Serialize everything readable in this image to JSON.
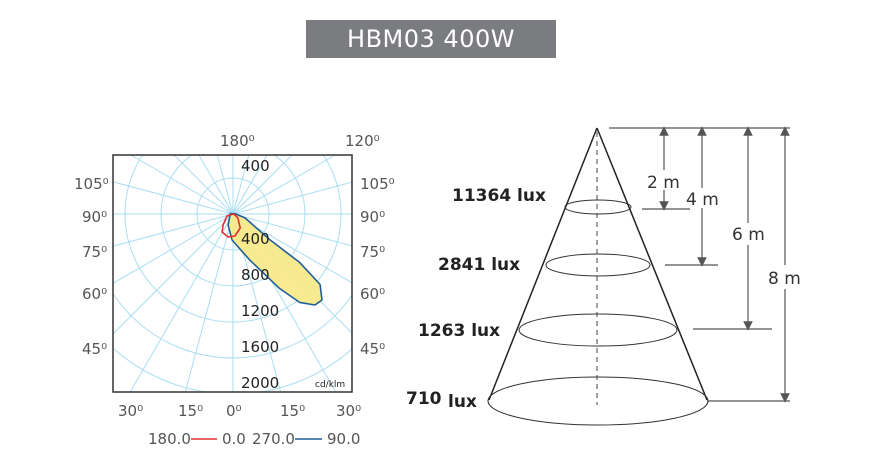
{
  "title": "HBM03 400W",
  "chart_data": {
    "type": "polar",
    "unit_label": "cd/klm",
    "radial_ticks": [
      "400",
      "400",
      "800",
      "1200",
      "1600",
      "2000"
    ],
    "radial_values": [
      400,
      800,
      1200,
      1600,
      2000
    ],
    "angle_labels": {
      "top": [
        "180⁰",
        "120⁰"
      ],
      "left": [
        "105⁰",
        "90⁰",
        "75⁰",
        "60⁰",
        "45⁰"
      ],
      "right": [
        "105⁰",
        "90⁰",
        "75⁰",
        "60⁰",
        "45⁰"
      ],
      "bottom": [
        "30⁰",
        "15⁰",
        "0⁰",
        "15⁰",
        "30⁰"
      ]
    },
    "grid": true,
    "series": [
      {
        "name": "180.0 — 0.0",
        "legend_left": "180.0",
        "legend_right": "0.0",
        "color": "#e03030",
        "points": [
          [
            -72,
            70
          ],
          [
            -42,
            165
          ],
          [
            -31,
            235
          ],
          [
            -12,
            260
          ],
          [
            5,
            245
          ],
          [
            27,
            175
          ],
          [
            51,
            70
          ],
          [
            90,
            10
          ]
        ]
      },
      {
        "name": "270.0 — 90.0",
        "legend_left": "270.0",
        "legend_right": "90.0",
        "color": "#1f5f99",
        "fill": "#f7e98a",
        "points": [
          [
            -100,
            30
          ],
          [
            -24,
            135
          ],
          [
            -2,
            290
          ],
          [
            20,
            545
          ],
          [
            32,
            975
          ],
          [
            37,
            1230
          ],
          [
            42,
            1360
          ],
          [
            46,
            1375
          ],
          [
            51,
            1245
          ],
          [
            54,
            915
          ],
          [
            55,
            500
          ],
          [
            72,
            140
          ],
          [
            95,
            25
          ]
        ]
      }
    ]
  },
  "cone": {
    "levels": [
      {
        "lux": "11364 lux",
        "height": "2 m"
      },
      {
        "lux": "2841 lux",
        "height": "4 m"
      },
      {
        "lux": "1263 lux",
        "height": "6 m"
      },
      {
        "lux": "710",
        "lux_unit": "lux",
        "height": "8 m"
      }
    ]
  }
}
